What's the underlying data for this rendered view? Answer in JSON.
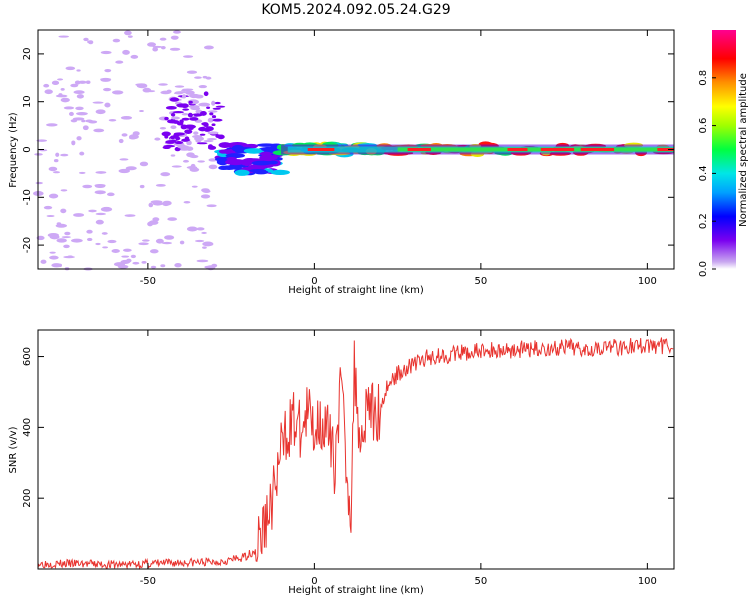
{
  "figure_title": "KOM5.2024.092.05.24.G29",
  "colorbar_label": "Normalized spectral amplitude",
  "colorbar_ticks": [
    "0.0",
    "0.2",
    "0.4",
    "0.6",
    "0.8"
  ],
  "chart_data": [
    {
      "type": "heatmap",
      "title": "",
      "xlabel": "Height of straight line (km)",
      "ylabel": "Frequency (Hz)",
      "xlim": [
        -83,
        108
      ],
      "ylim": [
        -25,
        25
      ],
      "xticks": [
        -50,
        0,
        50,
        100
      ],
      "yticks": [
        -20,
        -10,
        0,
        10,
        20
      ],
      "colormap": "rainbow (purple-blue-cyan-green-yellow-orange-red-magenta)",
      "colorbar_range": [
        0.0,
        1.0
      ],
      "description_of_structure": "Scattered weak low-amplitude noise patches below about -30 km; a dense band of medium amplitude near -40 to -30 km at 0 to 10 Hz; from -25 km onward energy concentrates on a narrow band at 0 Hz with high amplitude (orange/red) segments between about 0 and 108 km.",
      "bands": [
        {
          "x_start": -83,
          "x_end": -30,
          "freq_center": 0,
          "freq_half_width": 25,
          "amplitude": 0.1
        },
        {
          "x_start": -45,
          "x_end": -28,
          "freq_center": 6,
          "freq_half_width": 6,
          "amplitude": 0.2
        },
        {
          "x_start": -28,
          "x_end": -10,
          "freq_center": -2,
          "freq_half_width": 3,
          "amplitude": 0.3
        },
        {
          "x_start": -10,
          "x_end": 20,
          "freq_center": 0,
          "freq_half_width": 1,
          "amplitude": 0.6
        },
        {
          "x_start": 20,
          "x_end": 108,
          "freq_center": 0,
          "freq_half_width": 1,
          "amplitude": 0.85
        }
      ]
    },
    {
      "type": "line",
      "title": "",
      "xlabel": "Height of straight line (km)",
      "ylabel": "SNR (v/v)",
      "xlim": [
        -83,
        108
      ],
      "ylim": [
        0,
        675
      ],
      "xticks": [
        -50,
        0,
        50,
        100
      ],
      "yticks": [
        200,
        400,
        600
      ],
      "series": [
        {
          "color": "#e8342f",
          "x": [
            -83,
            -70,
            -60,
            -50,
            -40,
            -30,
            -22,
            -18,
            -15,
            -12,
            -10,
            -8,
            -6,
            -4,
            -2,
            0,
            2,
            4,
            6,
            8,
            10,
            11,
            12,
            14,
            16,
            18,
            20,
            22,
            24,
            26,
            28,
            30,
            35,
            40,
            45,
            50,
            60,
            70,
            80,
            90,
            100,
            108
          ],
          "y": [
            15,
            15,
            12,
            15,
            18,
            20,
            30,
            50,
            120,
            220,
            330,
            400,
            420,
            380,
            440,
            400,
            430,
            380,
            300,
            520,
            250,
            170,
            560,
            350,
            500,
            420,
            460,
            520,
            540,
            560,
            570,
            580,
            600,
            605,
            610,
            615,
            620,
            622,
            625,
            628,
            630,
            632
          ]
        }
      ]
    }
  ]
}
